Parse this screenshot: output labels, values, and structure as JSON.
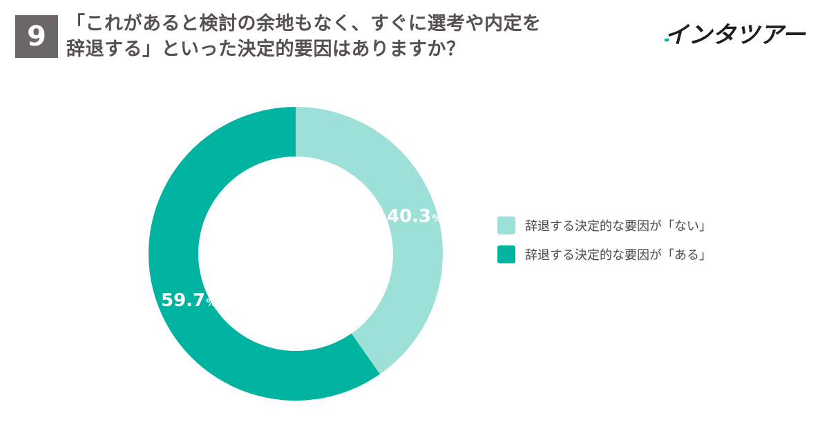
{
  "header": {
    "question_number": "9",
    "title_line1": "「これがあると検討の余地もなく、すぐに選考や内定を",
    "title_line2": "辞退する」といった決定的要因はありますか？",
    "brand": "インタツアー"
  },
  "colors": {
    "light": "#9de0d8",
    "dark": "#00b2a0",
    "brand_accent": "#00b2a0"
  },
  "chart_data": {
    "type": "pie",
    "donut": true,
    "start": "top",
    "direction": "clockwise",
    "unit": "%",
    "slices": [
      {
        "label": "辞退する決定的な要因が「ない」",
        "value": 40.3,
        "value_label": "40.3",
        "color": "#9de0d8"
      },
      {
        "label": "辞退する決定的な要因が「ある」",
        "value": 59.7,
        "value_label": "59.7",
        "color": "#00b2a0"
      }
    ],
    "legend_position": "right"
  }
}
